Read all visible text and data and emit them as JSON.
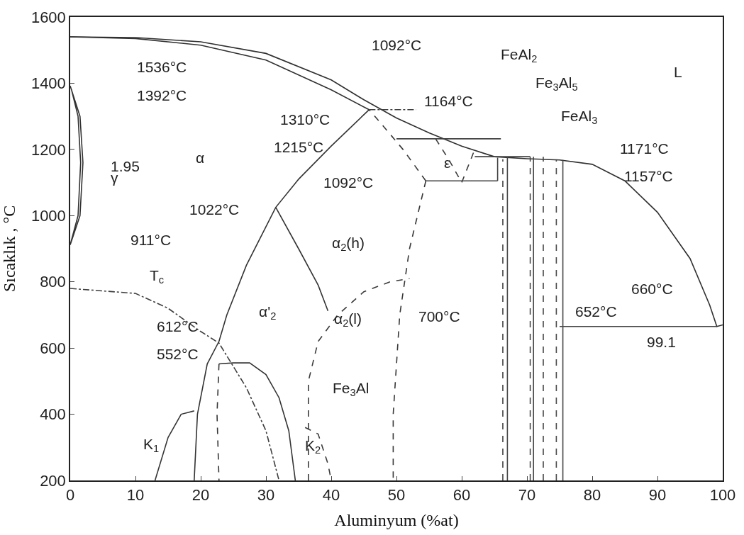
{
  "chart_data": {
    "type": "line",
    "xlabel": "Aluminyum (%at)",
    "ylabel": "Sıcaklık , °C",
    "xlim": [
      0,
      100
    ],
    "ylim": [
      200,
      1600
    ],
    "xticks": [
      0,
      10,
      20,
      30,
      40,
      50,
      60,
      70,
      80,
      90,
      100
    ],
    "yticks": [
      200,
      400,
      600,
      800,
      1000,
      1200,
      1400,
      1600
    ],
    "marker": "none",
    "series": [
      {
        "color": "#303030",
        "line_style": "solid",
        "x": [
          0,
          10,
          20,
          30,
          40,
          45,
          50,
          55,
          60,
          65,
          70,
          75,
          80,
          85,
          90,
          95,
          98,
          99.1,
          100
        ],
        "values": [
          1540,
          1538,
          1525,
          1490,
          1410,
          1350,
          1295,
          1250,
          1210,
          1178,
          1172,
          1168,
          1155,
          1105,
          1010,
          870,
          730,
          665,
          670
        ]
      },
      {
        "color": "#313131",
        "line_style": "solid",
        "x": [
          0,
          10,
          20,
          30,
          40,
          45.8
        ],
        "values": [
          1540,
          1535,
          1515,
          1470,
          1380,
          1320
        ]
      },
      {
        "color": "#323232",
        "line_style": "solid",
        "x": [
          0,
          1.5,
          1.95,
          1.5,
          0,
          1.2,
          1.6,
          1.2,
          0.2
        ],
        "values": [
          1392,
          1300,
          1160,
          1000,
          912,
          1000,
          1160,
          1300,
          1380
        ]
      },
      {
        "color": "#333333",
        "line_style": "solid",
        "x": [
          45.8,
          40,
          35,
          31.5,
          27,
          24,
          22.8,
          21,
          19.5,
          19
        ],
        "values": [
          1320,
          1210,
          1110,
          1025,
          850,
          700,
          620,
          552,
          400,
          200
        ]
      },
      {
        "color": "#343434",
        "line_style": "solid",
        "x": [
          31.5,
          35,
          38,
          39.5
        ],
        "values": [
          1025,
          900,
          790,
          712
        ]
      },
      {
        "color": "#353535",
        "line_style": "solid",
        "x": [
          22.8,
          25,
          27.5,
          30,
          32,
          33.5,
          34.5
        ],
        "values": [
          552,
          555,
          555,
          520,
          450,
          350,
          200
        ]
      },
      {
        "color": "#363636",
        "line_style": "solid",
        "x": [
          13,
          15,
          17,
          19
        ],
        "values": [
          200,
          330,
          400,
          410
        ]
      },
      {
        "color": "#373737",
        "line_style": "dashed",
        "x": [
          22.8,
          22.5,
          22.8
        ],
        "values": [
          552,
          400,
          200
        ]
      },
      {
        "color": "#383838",
        "line_style": "dashed",
        "x": [
          54.5,
          52,
          50.5,
          49.5,
          49.5
        ],
        "values": [
          1105,
          900,
          700,
          400,
          200
        ]
      },
      {
        "color": "#393939",
        "line_style": "dashed",
        "x": [
          54.5,
          51,
          48,
          45.8
        ],
        "values": [
          1105,
          1200,
          1270,
          1320
        ]
      },
      {
        "color": "#3a3a3a",
        "line_style": "dashed",
        "x": [
          36.5,
          36.5,
          38,
          41,
          45,
          49,
          52
        ],
        "values": [
          200,
          500,
          620,
          700,
          770,
          800,
          810
        ]
      },
      {
        "color": "#3b3b3b",
        "line_style": "dashed",
        "x": [
          36,
          38,
          39.5,
          40
        ],
        "values": [
          360,
          340,
          250,
          200
        ]
      },
      {
        "color": "#3c3c3c",
        "line_style": "dashed",
        "x": [
          56,
          58,
          60,
          62
        ],
        "values": [
          1232,
          1170,
          1100,
          1200
        ]
      },
      {
        "color": "#3d3d3d",
        "line_style": "dotted",
        "x": [
          0,
          10,
          15,
          20,
          22.8,
          27,
          30,
          32
        ],
        "values": [
          780,
          765,
          720,
          650,
          615,
          480,
          350,
          200
        ]
      },
      {
        "color": "#3e3e3e",
        "line_style": "dotted",
        "x": [
          45.8,
          53
        ],
        "values": [
          1320,
          1320
        ]
      },
      {
        "color": "#3f3f3f",
        "line_style": "solid",
        "x": [
          50,
          66
        ],
        "values": [
          1232,
          1232
        ]
      },
      {
        "color": "#404040",
        "line_style": "solid",
        "x": [
          54.5,
          65.5
        ],
        "values": [
          1105,
          1105
        ]
      },
      {
        "color": "#414141",
        "line_style": "solid",
        "x": [
          62,
          70.5
        ],
        "values": [
          1178,
          1178
        ]
      },
      {
        "color": "#424242",
        "line_style": "solid",
        "x": [
          75,
          99.1
        ],
        "values": [
          665,
          665
        ]
      },
      {
        "color": "#434343",
        "line_style": "solid",
        "x": [
          65.5,
          65.5
        ],
        "values": [
          1105,
          1175
        ]
      },
      {
        "color": "#444444",
        "line_style": "dashed",
        "x": [
          66.3,
          66.3
        ],
        "values": [
          200,
          1170
        ]
      },
      {
        "color": "#454545",
        "line_style": "solid",
        "x": [
          67,
          67
        ],
        "values": [
          200,
          1178
        ]
      },
      {
        "color": "#464646",
        "line_style": "dashed",
        "x": [
          70.5,
          70.5
        ],
        "values": [
          200,
          1178
        ]
      },
      {
        "color": "#474747",
        "line_style": "solid",
        "x": [
          71,
          71
        ],
        "values": [
          200,
          1178
        ]
      },
      {
        "color": "#484848",
        "line_style": "dashed",
        "x": [
          72.5,
          72.5
        ],
        "values": [
          200,
          1178
        ]
      },
      {
        "color": "#494949",
        "line_style": "dashed",
        "x": [
          74.5,
          74.5
        ],
        "values": [
          200,
          1170
        ]
      },
      {
        "color": "#4a4a4a",
        "line_style": "solid",
        "x": [
          75.5,
          75.5
        ],
        "values": [
          200,
          1168
        ]
      }
    ],
    "annotations": [
      "1536°C",
      "1392°C",
      "1.95",
      "γ",
      "911°C",
      "α",
      "1022°C",
      "1310°C",
      "1215°C",
      "1092°C",
      "1164°C",
      "FeAl$_{2}$",
      "Fe$_{3}$Al$_{5}$",
      "FeAl$_{3}$",
      "L",
      "1171°C",
      "1157°C",
      "ε",
      "1092°C",
      "α$_{2}$(h)",
      "α'$_{2}$",
      "α$_{2}$(l)",
      "700°C",
      "660°C",
      "652°C",
      "99.1",
      "T$_{c}$",
      "612°C",
      "552°C",
      "Fe$_{3}$Al",
      "K$_{1}$",
      "K$_{2}$"
    ]
  }
}
